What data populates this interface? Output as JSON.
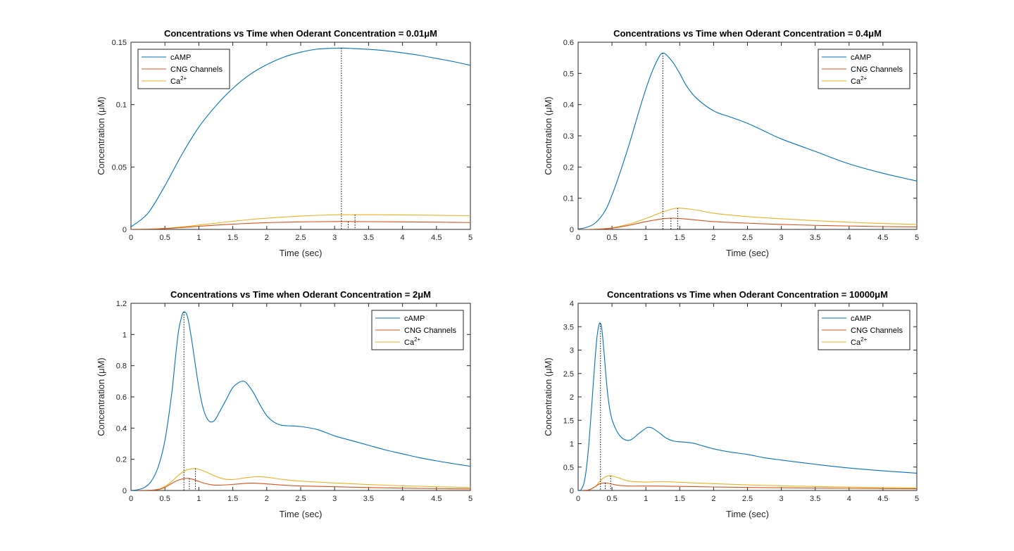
{
  "figure": {
    "background": "#ffffff"
  },
  "colors": {
    "cAMP": "#0072BD",
    "CNG Channels": "#D95319",
    "Ca2+": "#EDB120",
    "peak_marker": "#000000"
  },
  "chart_data": [
    {
      "type": "line",
      "title": "Concentrations vs Time when Oderant Concentration = 0.01μM",
      "xlabel": "Time (sec)",
      "ylabel": "Concentration (μM)",
      "xlim": [
        0,
        5
      ],
      "ylim": [
        0,
        0.15
      ],
      "xticks": [
        0,
        0.5,
        1,
        1.5,
        2,
        2.5,
        3,
        3.5,
        4,
        4.5,
        5
      ],
      "xtick_labels": [
        "0",
        "0.5",
        "1",
        "1.5",
        "2",
        "2.5",
        "3",
        "3.5",
        "4",
        "4.5",
        "5"
      ],
      "yticks": [
        0,
        0.05,
        0.1,
        0.15
      ],
      "ytick_labels": [
        "0",
        "0.05",
        "0.1",
        "0.15"
      ],
      "legend": {
        "location": "top-left",
        "entries": [
          {
            "base": "cAMP",
            "sup": ""
          },
          {
            "base": "CNG Channels",
            "sup": ""
          },
          {
            "base": "Ca",
            "sup": "2+"
          }
        ]
      },
      "series": [
        {
          "name": "cAMP",
          "x": [
            0,
            0.25,
            0.5,
            0.75,
            1,
            1.25,
            1.5,
            1.75,
            2,
            2.25,
            2.5,
            2.75,
            3,
            3.1,
            3.25,
            3.5,
            3.75,
            4,
            4.25,
            4.5,
            4.75,
            5
          ],
          "y": [
            0.002,
            0.013,
            0.035,
            0.06,
            0.082,
            0.099,
            0.113,
            0.124,
            0.132,
            0.138,
            0.142,
            0.1445,
            0.1452,
            0.1453,
            0.145,
            0.1443,
            0.1432,
            0.1415,
            0.1395,
            0.137,
            0.1345,
            0.1315
          ]
        },
        {
          "name": "CNG Channels",
          "x": [
            0,
            0.25,
            0.5,
            0.75,
            1,
            1.25,
            1.5,
            1.75,
            2,
            2.5,
            3,
            3.2,
            3.5,
            4,
            4.5,
            5
          ],
          "y": [
            0,
            0.0002,
            0.0007,
            0.0015,
            0.0025,
            0.0034,
            0.0042,
            0.0049,
            0.0054,
            0.006,
            0.0063,
            0.0063,
            0.0062,
            0.006,
            0.0058,
            0.0055
          ]
        },
        {
          "name": "Ca2+",
          "x": [
            0,
            0.25,
            0.5,
            0.75,
            1,
            1.25,
            1.5,
            1.75,
            2,
            2.5,
            3,
            3.3,
            3.5,
            4,
            4.5,
            5
          ],
          "y": [
            0,
            0.0002,
            0.0008,
            0.002,
            0.0035,
            0.005,
            0.0065,
            0.0079,
            0.009,
            0.0107,
            0.0117,
            0.0118,
            0.0118,
            0.0116,
            0.0113,
            0.011
          ]
        }
      ],
      "peak_markers": [
        {
          "series": "cAMP",
          "x": 3.1,
          "y": 0.1453
        },
        {
          "series": "CNG Channels",
          "x": 3.2,
          "y": 0.0063
        },
        {
          "series": "Ca2+",
          "x": 3.3,
          "y": 0.0118
        }
      ]
    },
    {
      "type": "line",
      "title": "Concentrations vs Time when Oderant Concentration = 0.4μM",
      "xlabel": "Time (sec)",
      "ylabel": "Concentration (μM)",
      "xlim": [
        0,
        5
      ],
      "ylim": [
        0,
        0.6
      ],
      "xticks": [
        0,
        0.5,
        1,
        1.5,
        2,
        2.5,
        3,
        3.5,
        4,
        4.5,
        5
      ],
      "xtick_labels": [
        "0",
        "0.5",
        "1",
        "1.5",
        "2",
        "2.5",
        "3",
        "3.5",
        "4",
        "4.5",
        "5"
      ],
      "yticks": [
        0,
        0.1,
        0.2,
        0.3,
        0.4,
        0.5,
        0.6
      ],
      "ytick_labels": [
        "0",
        "0.1",
        "0.2",
        "0.3",
        "0.4",
        "0.5",
        "0.6"
      ],
      "legend": {
        "location": "top-right",
        "entries": [
          {
            "base": "cAMP",
            "sup": ""
          },
          {
            "base": "CNG Channels",
            "sup": ""
          },
          {
            "base": "Ca",
            "sup": "2+"
          }
        ]
      },
      "series": [
        {
          "name": "cAMP",
          "x": [
            0,
            0.1,
            0.25,
            0.4,
            0.5,
            0.6,
            0.75,
            0.9,
            1,
            1.1,
            1.2,
            1.25,
            1.3,
            1.4,
            1.5,
            1.6,
            1.75,
            2,
            2.25,
            2.5,
            2.75,
            3,
            3.5,
            4,
            4.5,
            5
          ],
          "y": [
            0.002,
            0.005,
            0.02,
            0.06,
            0.11,
            0.17,
            0.27,
            0.38,
            0.45,
            0.51,
            0.555,
            0.565,
            0.56,
            0.535,
            0.5,
            0.46,
            0.42,
            0.38,
            0.36,
            0.34,
            0.315,
            0.29,
            0.25,
            0.21,
            0.18,
            0.155
          ]
        },
        {
          "name": "CNG Channels",
          "x": [
            0,
            0.25,
            0.5,
            0.75,
            1,
            1.25,
            1.4,
            1.5,
            1.75,
            2,
            2.5,
            3,
            3.5,
            4,
            4.5,
            5
          ],
          "y": [
            0,
            0.0005,
            0.004,
            0.013,
            0.025,
            0.034,
            0.036,
            0.035,
            0.03,
            0.025,
            0.02,
            0.016,
            0.013,
            0.011,
            0.009,
            0.008
          ]
        },
        {
          "name": "Ca2+",
          "x": [
            0,
            0.25,
            0.5,
            0.75,
            1,
            1.25,
            1.4,
            1.5,
            1.75,
            2,
            2.5,
            3,
            3.5,
            4,
            4.5,
            5
          ],
          "y": [
            0,
            0.0005,
            0.005,
            0.017,
            0.035,
            0.056,
            0.066,
            0.068,
            0.062,
            0.052,
            0.041,
            0.034,
            0.028,
            0.023,
            0.019,
            0.016
          ]
        }
      ],
      "peak_markers": [
        {
          "series": "cAMP",
          "x": 1.25,
          "y": 0.565
        },
        {
          "series": "CNG Channels",
          "x": 1.37,
          "y": 0.036
        },
        {
          "series": "Ca2+",
          "x": 1.47,
          "y": 0.068
        }
      ]
    },
    {
      "type": "line",
      "title": "Concentrations vs Time when Oderant Concentration = 2μM",
      "xlabel": "Time (sec)",
      "ylabel": "Concentration (μM)",
      "xlim": [
        0,
        5
      ],
      "ylim": [
        0,
        1.2
      ],
      "xticks": [
        0,
        0.5,
        1,
        1.5,
        2,
        2.5,
        3,
        3.5,
        4,
        4.5,
        5
      ],
      "xtick_labels": [
        "0",
        "0.5",
        "1",
        "1.5",
        "2",
        "2.5",
        "3",
        "3.5",
        "4",
        "4.5",
        "5"
      ],
      "yticks": [
        0,
        0.2,
        0.4,
        0.6,
        0.8,
        1,
        1.2
      ],
      "ytick_labels": [
        "0",
        "0.2",
        "0.4",
        "0.6",
        "0.8",
        "1",
        "1.2"
      ],
      "legend": {
        "location": "top-right",
        "entries": [
          {
            "base": "cAMP",
            "sup": ""
          },
          {
            "base": "CNG Channels",
            "sup": ""
          },
          {
            "base": "Ca",
            "sup": "2+"
          }
        ]
      },
      "series": [
        {
          "name": "cAMP",
          "x": [
            0,
            0.1,
            0.2,
            0.3,
            0.4,
            0.5,
            0.6,
            0.65,
            0.7,
            0.75,
            0.78,
            0.82,
            0.85,
            0.9,
            0.95,
            1,
            1.05,
            1.1,
            1.15,
            1.2,
            1.25,
            1.3,
            1.4,
            1.5,
            1.6,
            1.65,
            1.7,
            1.8,
            1.9,
            2,
            2.1,
            2.2,
            2.3,
            2.5,
            2.75,
            3,
            3.25,
            3.5,
            3.75,
            4,
            4.25,
            4.5,
            4.75,
            5
          ],
          "y": [
            0,
            0.005,
            0.02,
            0.06,
            0.15,
            0.32,
            0.62,
            0.83,
            1.02,
            1.12,
            1.145,
            1.13,
            1.08,
            0.95,
            0.8,
            0.66,
            0.55,
            0.48,
            0.445,
            0.44,
            0.46,
            0.5,
            0.58,
            0.66,
            0.695,
            0.7,
            0.69,
            0.63,
            0.55,
            0.48,
            0.44,
            0.42,
            0.415,
            0.41,
            0.39,
            0.35,
            0.32,
            0.29,
            0.26,
            0.235,
            0.21,
            0.19,
            0.172,
            0.155
          ]
        },
        {
          "name": "CNG Channels",
          "x": [
            0,
            0.25,
            0.4,
            0.5,
            0.6,
            0.7,
            0.8,
            0.85,
            0.9,
            1,
            1.1,
            1.2,
            1.3,
            1.5,
            1.7,
            1.8,
            2,
            2.25,
            2.5,
            3,
            3.5,
            4,
            4.5,
            5
          ],
          "y": [
            0,
            0.001,
            0.006,
            0.02,
            0.045,
            0.067,
            0.077,
            0.077,
            0.073,
            0.058,
            0.044,
            0.036,
            0.034,
            0.039,
            0.046,
            0.047,
            0.042,
            0.034,
            0.029,
            0.024,
            0.019,
            0.015,
            0.012,
            0.01
          ]
        },
        {
          "name": "Ca2+",
          "x": [
            0,
            0.25,
            0.4,
            0.5,
            0.6,
            0.7,
            0.8,
            0.9,
            0.95,
            1,
            1.1,
            1.2,
            1.3,
            1.4,
            1.5,
            1.7,
            1.85,
            2,
            2.25,
            2.5,
            3,
            3.5,
            4,
            4.5,
            5
          ],
          "y": [
            0,
            0.001,
            0.008,
            0.026,
            0.058,
            0.098,
            0.128,
            0.14,
            0.141,
            0.136,
            0.12,
            0.1,
            0.082,
            0.072,
            0.07,
            0.082,
            0.088,
            0.085,
            0.07,
            0.06,
            0.048,
            0.038,
            0.03,
            0.024,
            0.019
          ]
        }
      ],
      "peak_markers": [
        {
          "series": "cAMP",
          "x": 0.78,
          "y": 1.145
        },
        {
          "series": "CNG Channels",
          "x": 0.86,
          "y": 0.077
        },
        {
          "series": "Ca2+",
          "x": 0.95,
          "y": 0.141
        }
      ]
    },
    {
      "type": "line",
      "title": "Concentrations vs Time when Oderant Concentration = 10000μM",
      "xlabel": "Time (sec)",
      "ylabel": "Concentration (μM)",
      "xlim": [
        0,
        5
      ],
      "ylim": [
        0,
        4
      ],
      "xticks": [
        0,
        0.5,
        1,
        1.5,
        2,
        2.5,
        3,
        3.5,
        4,
        4.5,
        5
      ],
      "xtick_labels": [
        "0",
        "0.5",
        "1",
        "1.5",
        "2",
        "2.5",
        "3",
        "3.5",
        "4",
        "4.5",
        "5"
      ],
      "yticks": [
        0,
        0.5,
        1,
        1.5,
        2,
        2.5,
        3,
        3.5,
        4
      ],
      "ytick_labels": [
        "0",
        "0.5",
        "1",
        "1.5",
        "2",
        "2.5",
        "3",
        "3.5",
        "4"
      ],
      "legend": {
        "location": "top-right",
        "entries": [
          {
            "base": "cAMP",
            "sup": ""
          },
          {
            "base": "CNG Channels",
            "sup": ""
          },
          {
            "base": "Ca",
            "sup": "2+"
          }
        ]
      },
      "series": [
        {
          "name": "cAMP",
          "x": [
            0,
            0.05,
            0.1,
            0.15,
            0.2,
            0.25,
            0.28,
            0.31,
            0.33,
            0.35,
            0.38,
            0.42,
            0.46,
            0.5,
            0.55,
            0.6,
            0.65,
            0.7,
            0.75,
            0.8,
            0.9,
            1,
            1.05,
            1.1,
            1.2,
            1.3,
            1.4,
            1.5,
            1.6,
            1.7,
            1.8,
            2,
            2.25,
            2.5,
            2.75,
            3,
            3.5,
            4,
            4.5,
            5
          ],
          "y": [
            0,
            0.03,
            0.25,
            0.85,
            1.8,
            2.8,
            3.3,
            3.55,
            3.57,
            3.45,
            3.0,
            2.3,
            1.8,
            1.52,
            1.33,
            1.2,
            1.12,
            1.08,
            1.07,
            1.1,
            1.22,
            1.33,
            1.35,
            1.33,
            1.23,
            1.12,
            1.06,
            1.04,
            1.03,
            1.01,
            0.97,
            0.89,
            0.82,
            0.77,
            0.7,
            0.65,
            0.56,
            0.48,
            0.42,
            0.37
          ]
        },
        {
          "name": "CNG Channels",
          "x": [
            0,
            0.15,
            0.25,
            0.3,
            0.35,
            0.4,
            0.45,
            0.5,
            0.6,
            0.75,
            1,
            1.25,
            1.5,
            2,
            2.5,
            3,
            3.5,
            4,
            4.5,
            5
          ],
          "y": [
            0,
            0.01,
            0.08,
            0.13,
            0.155,
            0.16,
            0.152,
            0.135,
            0.11,
            0.095,
            0.095,
            0.093,
            0.088,
            0.075,
            0.065,
            0.057,
            0.05,
            0.045,
            0.04,
            0.036
          ]
        },
        {
          "name": "Ca2+",
          "x": [
            0,
            0.15,
            0.25,
            0.3,
            0.35,
            0.4,
            0.45,
            0.5,
            0.6,
            0.75,
            1,
            1.25,
            1.5,
            2,
            2.5,
            3,
            3.5,
            4,
            4.5,
            5
          ],
          "y": [
            0,
            0.01,
            0.08,
            0.16,
            0.24,
            0.29,
            0.315,
            0.31,
            0.27,
            0.2,
            0.18,
            0.19,
            0.175,
            0.145,
            0.12,
            0.1,
            0.085,
            0.072,
            0.062,
            0.054
          ]
        }
      ],
      "peak_markers": [
        {
          "series": "cAMP",
          "x": 0.33,
          "y": 3.57
        },
        {
          "series": "CNG Channels",
          "x": 0.4,
          "y": 0.16
        },
        {
          "series": "Ca2+",
          "x": 0.48,
          "y": 0.315
        }
      ]
    }
  ]
}
